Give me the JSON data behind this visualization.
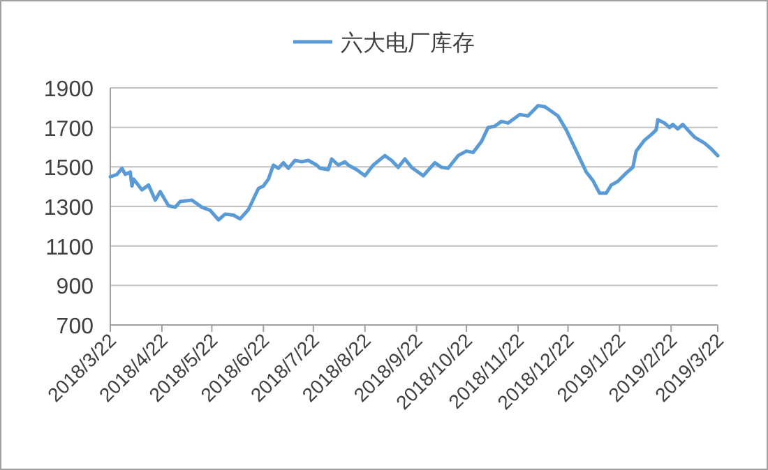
{
  "chart_data": {
    "type": "line",
    "legend": "top",
    "grid": "y",
    "xlim": [
      "2018-03-22",
      "2019-03-22"
    ],
    "ylim": [
      700,
      1900
    ],
    "yticks": [
      700,
      900,
      1100,
      1300,
      1500,
      1700,
      1900
    ],
    "xticks": [
      {
        "value": "2018-03-22",
        "label": "2018/3/22"
      },
      {
        "value": "2018-04-22",
        "label": "2018/4/22"
      },
      {
        "value": "2018-05-22",
        "label": "2018/5/22"
      },
      {
        "value": "2018-06-22",
        "label": "2018/6/22"
      },
      {
        "value": "2018-07-22",
        "label": "2018/7/22"
      },
      {
        "value": "2018-08-22",
        "label": "2018/8/22"
      },
      {
        "value": "2018-09-22",
        "label": "2018/9/22"
      },
      {
        "value": "2018-10-22",
        "label": "2018/10/22"
      },
      {
        "value": "2018-11-22",
        "label": "2018/11/22"
      },
      {
        "value": "2018-12-22",
        "label": "2018/12/22"
      },
      {
        "value": "2019-01-22",
        "label": "2019/1/22"
      },
      {
        "value": "2019-02-22",
        "label": "2019/2/22"
      },
      {
        "value": "2019-03-22",
        "label": "2019/3/22"
      }
    ],
    "x": [
      "2018-03-22",
      "2018-03-26",
      "2018-03-29",
      "2018-03-31",
      "2018-04-03",
      "2018-04-04",
      "2018-04-05",
      "2018-04-10",
      "2018-04-14",
      "2018-04-18",
      "2018-04-21",
      "2018-04-26",
      "2018-04-30",
      "2018-05-03",
      "2018-05-10",
      "2018-05-16",
      "2018-05-21",
      "2018-05-26",
      "2018-05-30",
      "2018-06-04",
      "2018-06-08",
      "2018-06-13",
      "2018-06-19",
      "2018-06-22",
      "2018-06-25",
      "2018-06-28",
      "2018-07-01",
      "2018-07-04",
      "2018-07-07",
      "2018-07-11",
      "2018-07-15",
      "2018-07-19",
      "2018-07-24",
      "2018-07-26",
      "2018-07-31",
      "2018-08-02",
      "2018-08-06",
      "2018-08-10",
      "2018-08-12",
      "2018-08-17",
      "2018-08-22",
      "2018-08-27",
      "2018-09-03",
      "2018-09-07",
      "2018-09-11",
      "2018-09-15",
      "2018-09-19",
      "2018-09-26",
      "2018-10-03",
      "2018-10-07",
      "2018-10-11",
      "2018-10-17",
      "2018-10-22",
      "2018-10-26",
      "2018-10-31",
      "2018-11-04",
      "2018-11-08",
      "2018-11-12",
      "2018-11-16",
      "2018-11-23",
      "2018-11-28",
      "2018-12-04",
      "2018-12-08",
      "2018-12-12",
      "2018-12-16",
      "2018-12-21",
      "2018-12-25",
      "2018-12-29",
      "2019-01-02",
      "2019-01-06",
      "2019-01-10",
      "2019-01-14",
      "2019-01-17",
      "2019-01-21",
      "2019-01-26",
      "2019-01-30",
      "2019-02-01",
      "2019-02-06",
      "2019-02-10",
      "2019-02-13",
      "2019-02-14",
      "2019-02-18",
      "2019-02-21",
      "2019-02-23",
      "2019-02-26",
      "2019-03-01",
      "2019-03-04",
      "2019-03-08",
      "2019-03-14",
      "2019-03-18",
      "2019-03-22"
    ],
    "series": [
      {
        "name": "六大电厂库存",
        "color": "#5b9bd5",
        "values": [
          1450,
          1462,
          1493,
          1462,
          1474,
          1403,
          1438,
          1384,
          1408,
          1332,
          1375,
          1303,
          1296,
          1325,
          1332,
          1296,
          1280,
          1232,
          1261,
          1256,
          1237,
          1284,
          1391,
          1403,
          1438,
          1509,
          1493,
          1521,
          1493,
          1533,
          1526,
          1533,
          1509,
          1493,
          1486,
          1540,
          1509,
          1526,
          1509,
          1486,
          1455,
          1509,
          1557,
          1533,
          1498,
          1540,
          1498,
          1455,
          1521,
          1498,
          1493,
          1557,
          1580,
          1573,
          1628,
          1699,
          1706,
          1730,
          1722,
          1765,
          1758,
          1810,
          1805,
          1782,
          1758,
          1687,
          1616,
          1545,
          1474,
          1431,
          1367,
          1367,
          1408,
          1427,
          1469,
          1498,
          1580,
          1635,
          1663,
          1687,
          1739,
          1722,
          1699,
          1715,
          1692,
          1715,
          1687,
          1651,
          1621,
          1592,
          1557
        ]
      }
    ]
  }
}
